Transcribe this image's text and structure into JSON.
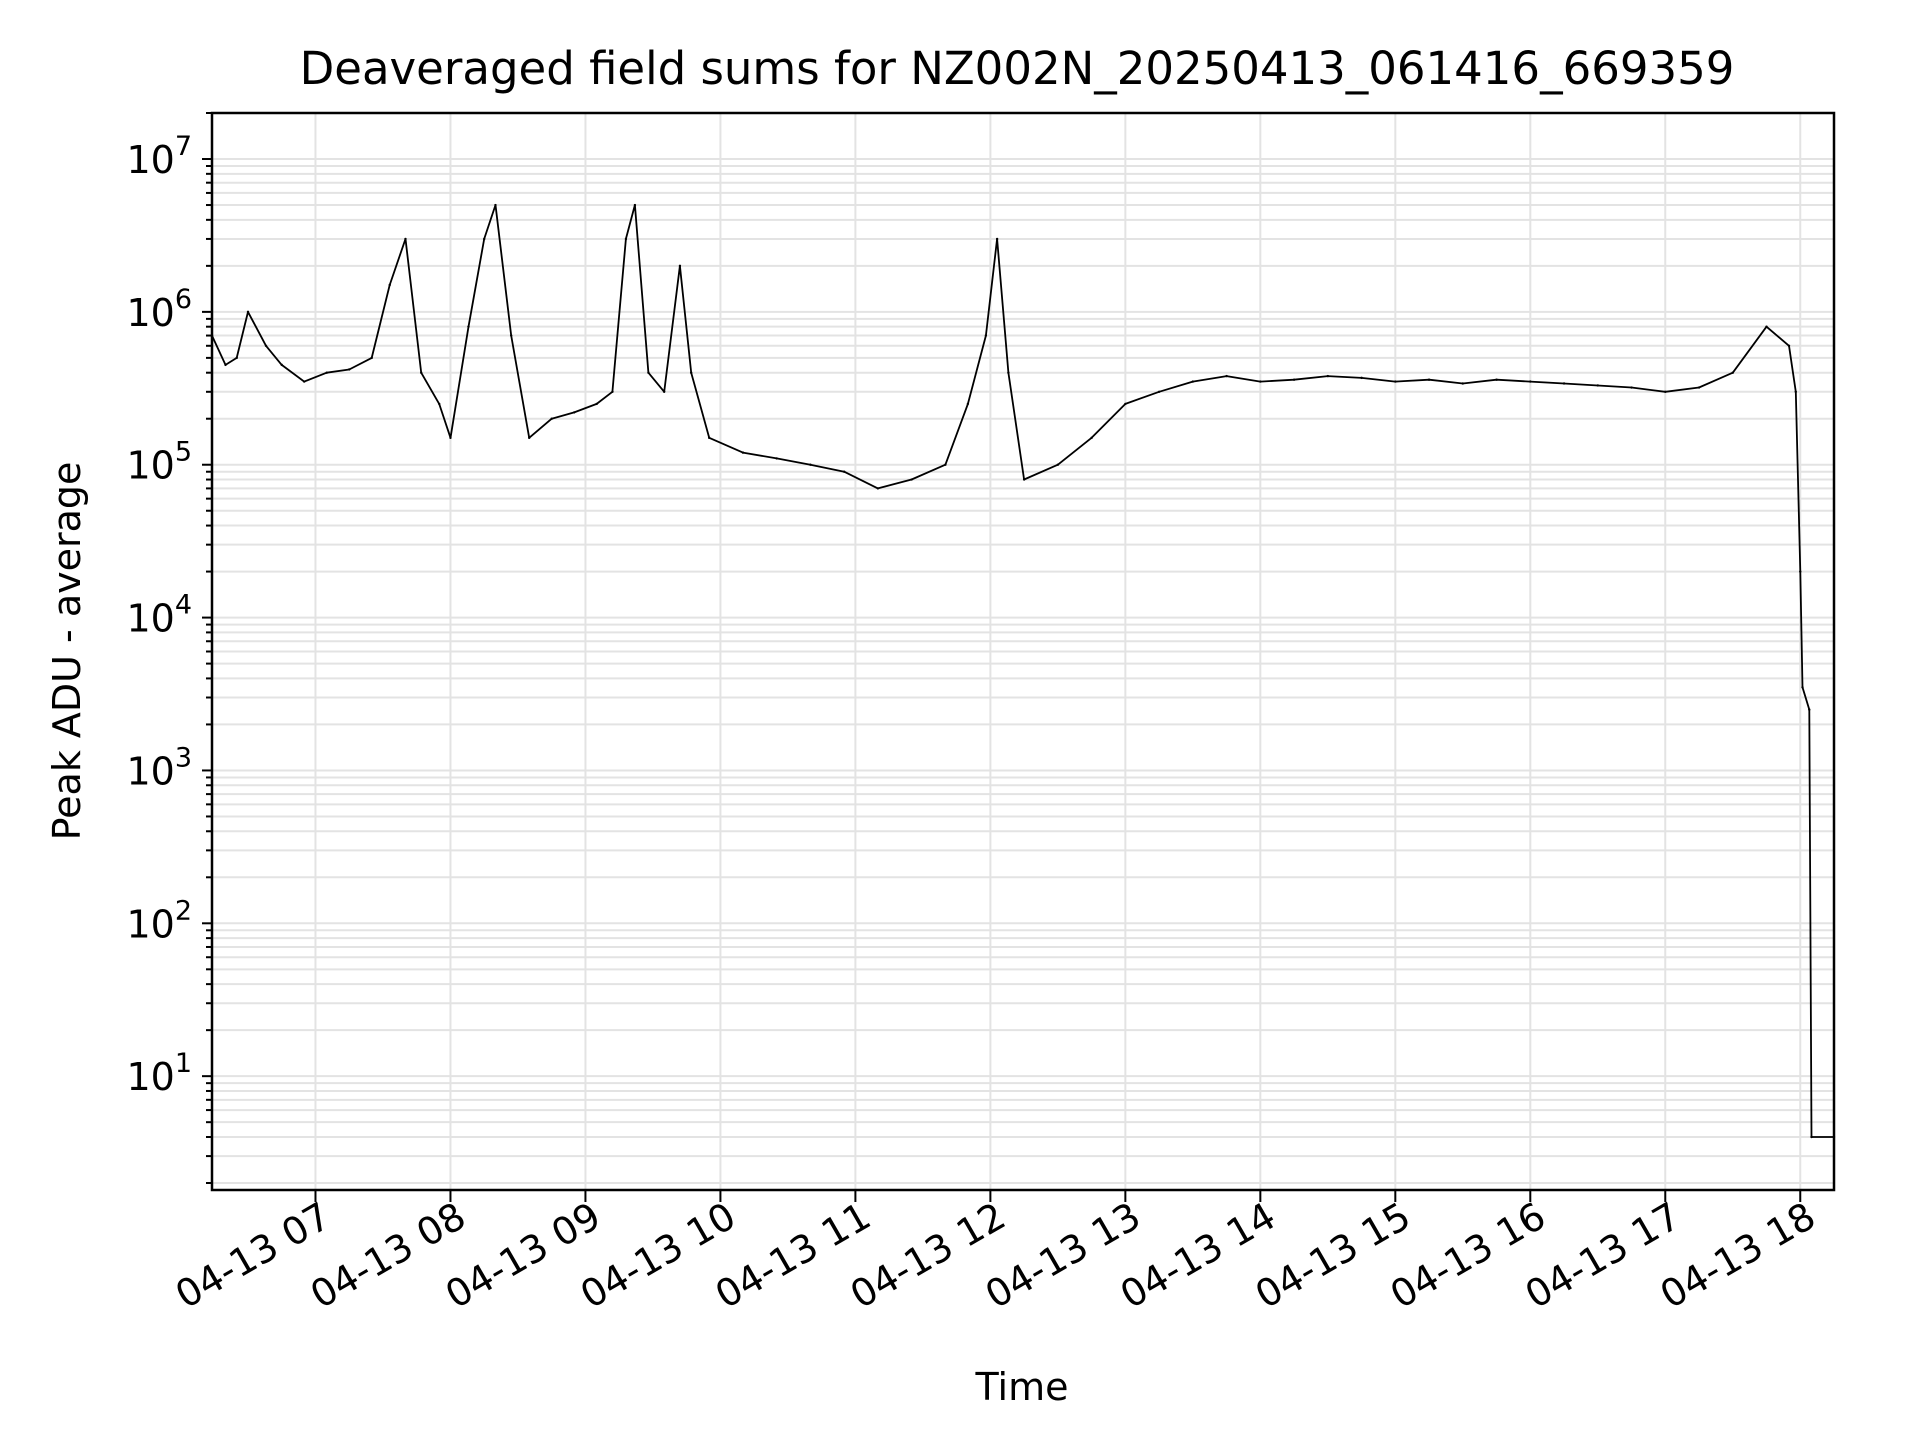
{
  "chart_data": {
    "type": "line",
    "title": "Deaveraged field sums for NZ002N_20250413_061416_669359",
    "xlabel": "Time",
    "ylabel": "Peak ADU - average",
    "yscale": "log",
    "ylim": [
      1.8,
      20000000
    ],
    "xlim": [
      "2025-04-13 06:14",
      "2025-04-13 18:15"
    ],
    "grid": true,
    "series_color": "#000000",
    "x_ticks": [
      {
        "label": "04-13 07",
        "at": "2025-04-13 07:00"
      },
      {
        "label": "04-13 08",
        "at": "2025-04-13 08:00"
      },
      {
        "label": "04-13 09",
        "at": "2025-04-13 09:00"
      },
      {
        "label": "04-13 10",
        "at": "2025-04-13 10:00"
      },
      {
        "label": "04-13 11",
        "at": "2025-04-13 11:00"
      },
      {
        "label": "04-13 12",
        "at": "2025-04-13 12:00"
      },
      {
        "label": "04-13 13",
        "at": "2025-04-13 13:00"
      },
      {
        "label": "04-13 14",
        "at": "2025-04-13 14:00"
      },
      {
        "label": "04-13 15",
        "at": "2025-04-13 15:00"
      },
      {
        "label": "04-13 16",
        "at": "2025-04-13 16:00"
      },
      {
        "label": "04-13 17",
        "at": "2025-04-13 17:00"
      },
      {
        "label": "04-13 18",
        "at": "2025-04-13 18:00"
      }
    ],
    "y_ticks": [
      {
        "value": 10,
        "mantissa": "10",
        "exponent": "1"
      },
      {
        "value": 100,
        "mantissa": "10",
        "exponent": "2"
      },
      {
        "value": 1000,
        "mantissa": "10",
        "exponent": "3"
      },
      {
        "value": 10000,
        "mantissa": "10",
        "exponent": "4"
      },
      {
        "value": 100000,
        "mantissa": "10",
        "exponent": "5"
      },
      {
        "value": 1000000,
        "mantissa": "10",
        "exponent": "6"
      },
      {
        "value": 10000000,
        "mantissa": "10",
        "exponent": "7"
      }
    ],
    "series": [
      {
        "values": [
          [
            "2025-04-13 06:14",
            700000
          ],
          [
            "2025-04-13 06:20",
            450000
          ],
          [
            "2025-04-13 06:25",
            500000
          ],
          [
            "2025-04-13 06:30",
            1000000
          ],
          [
            "2025-04-13 06:38",
            600000
          ],
          [
            "2025-04-13 06:45",
            450000
          ],
          [
            "2025-04-13 06:55",
            350000
          ],
          [
            "2025-04-13 07:05",
            400000
          ],
          [
            "2025-04-13 07:15",
            420000
          ],
          [
            "2025-04-13 07:25",
            500000
          ],
          [
            "2025-04-13 07:33",
            1500000
          ],
          [
            "2025-04-13 07:40",
            3000000
          ],
          [
            "2025-04-13 07:47",
            400000
          ],
          [
            "2025-04-13 07:55",
            250000
          ],
          [
            "2025-04-13 08:00",
            150000
          ],
          [
            "2025-04-13 08:08",
            800000
          ],
          [
            "2025-04-13 08:15",
            3000000
          ],
          [
            "2025-04-13 08:20",
            5000000
          ],
          [
            "2025-04-13 08:27",
            700000
          ],
          [
            "2025-04-13 08:35",
            150000
          ],
          [
            "2025-04-13 08:45",
            200000
          ],
          [
            "2025-04-13 08:55",
            220000
          ],
          [
            "2025-04-13 09:05",
            250000
          ],
          [
            "2025-04-13 09:12",
            300000
          ],
          [
            "2025-04-13 09:18",
            3000000
          ],
          [
            "2025-04-13 09:22",
            5000000
          ],
          [
            "2025-04-13 09:28",
            400000
          ],
          [
            "2025-04-13 09:35",
            300000
          ],
          [
            "2025-04-13 09:42",
            2000000
          ],
          [
            "2025-04-13 09:47",
            400000
          ],
          [
            "2025-04-13 09:55",
            150000
          ],
          [
            "2025-04-13 10:10",
            120000
          ],
          [
            "2025-04-13 10:25",
            110000
          ],
          [
            "2025-04-13 10:40",
            100000
          ],
          [
            "2025-04-13 10:55",
            90000
          ],
          [
            "2025-04-13 11:10",
            70000
          ],
          [
            "2025-04-13 11:25",
            80000
          ],
          [
            "2025-04-13 11:40",
            100000
          ],
          [
            "2025-04-13 11:50",
            250000
          ],
          [
            "2025-04-13 11:58",
            700000
          ],
          [
            "2025-04-13 12:03",
            3000000
          ],
          [
            "2025-04-13 12:08",
            400000
          ],
          [
            "2025-04-13 12:15",
            80000
          ],
          [
            "2025-04-13 12:30",
            100000
          ],
          [
            "2025-04-13 12:45",
            150000
          ],
          [
            "2025-04-13 13:00",
            250000
          ],
          [
            "2025-04-13 13:15",
            300000
          ],
          [
            "2025-04-13 13:30",
            350000
          ],
          [
            "2025-04-13 13:45",
            380000
          ],
          [
            "2025-04-13 14:00",
            350000
          ],
          [
            "2025-04-13 14:15",
            360000
          ],
          [
            "2025-04-13 14:30",
            380000
          ],
          [
            "2025-04-13 14:45",
            370000
          ],
          [
            "2025-04-13 15:00",
            350000
          ],
          [
            "2025-04-13 15:15",
            360000
          ],
          [
            "2025-04-13 15:30",
            340000
          ],
          [
            "2025-04-13 15:45",
            360000
          ],
          [
            "2025-04-13 16:00",
            350000
          ],
          [
            "2025-04-13 16:15",
            340000
          ],
          [
            "2025-04-13 16:30",
            330000
          ],
          [
            "2025-04-13 16:45",
            320000
          ],
          [
            "2025-04-13 17:00",
            300000
          ],
          [
            "2025-04-13 17:15",
            320000
          ],
          [
            "2025-04-13 17:30",
            400000
          ],
          [
            "2025-04-13 17:45",
            800000
          ],
          [
            "2025-04-13 17:55",
            600000
          ],
          [
            "2025-04-13 17:58",
            300000
          ],
          [
            "2025-04-13 18:00",
            20000
          ],
          [
            "2025-04-13 18:01",
            3500
          ],
          [
            "2025-04-13 18:04",
            2500
          ],
          [
            "2025-04-13 18:05",
            4
          ],
          [
            "2025-04-13 18:15",
            4
          ]
        ]
      }
    ]
  }
}
